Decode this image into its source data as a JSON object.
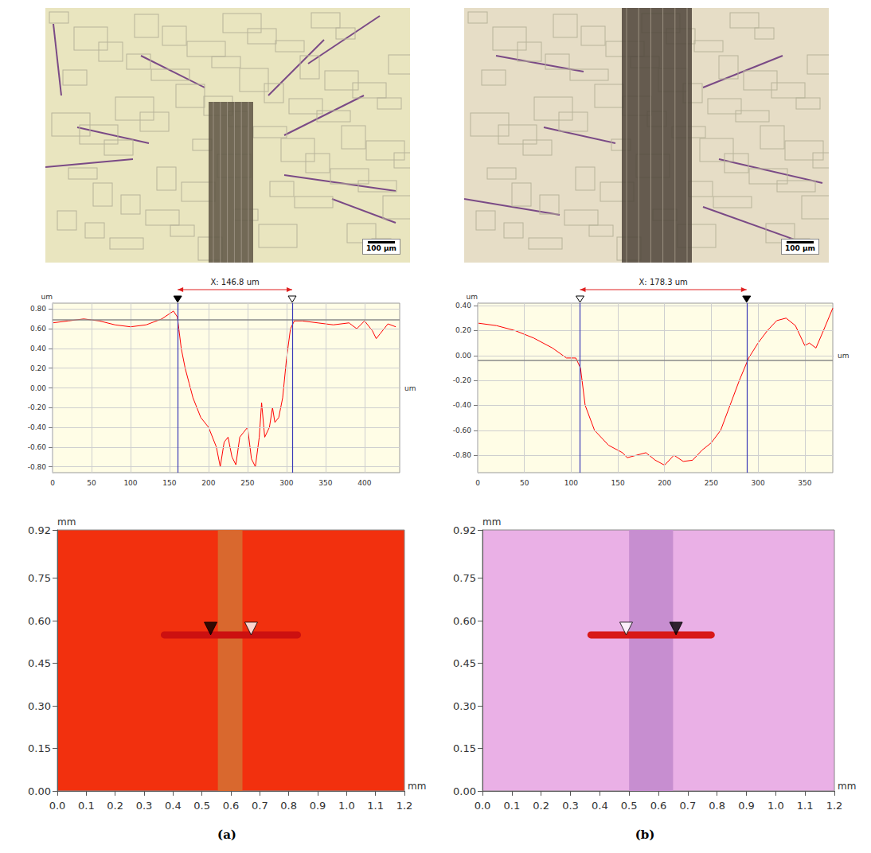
{
  "panel_labels": [
    "(a)",
    "(b)"
  ],
  "micrographs": [
    {
      "scale_bar": "100 µm"
    },
    {
      "scale_bar": "100 µm"
    }
  ],
  "chart_data": [
    {
      "type": "line",
      "annotation": "X: 146.8 um",
      "x_label": "um",
      "y_label": "um",
      "xlim": [
        0,
        445
      ],
      "xticks": [
        0,
        50,
        100,
        150,
        200,
        250,
        300,
        350,
        400
      ],
      "ylim": [
        -0.86,
        0.86
      ],
      "yticks": [
        {
          "value": -0.8,
          "label": "-0.80"
        },
        {
          "value": -0.6,
          "label": "-0.60"
        },
        {
          "value": -0.4,
          "label": "-0.40"
        },
        {
          "value": -0.2,
          "label": "-0.20"
        },
        {
          "value": 0,
          "label": "0.00"
        },
        {
          "value": 0.2,
          "label": "0.20"
        },
        {
          "value": 0.4,
          "label": "0.40"
        },
        {
          "value": 0.6,
          "label": "0.60"
        },
        {
          "value": 0.8,
          "label": "0.80"
        }
      ],
      "grid": true,
      "color": "#ff0000",
      "x": [
        0,
        20,
        40,
        60,
        80,
        100,
        120,
        140,
        155,
        160,
        165,
        170,
        175,
        180,
        190,
        200,
        210,
        215,
        220,
        225,
        230,
        235,
        240,
        245,
        250,
        255,
        260,
        265,
        268,
        272,
        278,
        282,
        285,
        290,
        295,
        300,
        305,
        310,
        320,
        340,
        360,
        380,
        390,
        400,
        410,
        415,
        420,
        430,
        440
      ],
      "values": [
        0.66,
        0.68,
        0.7,
        0.68,
        0.64,
        0.62,
        0.64,
        0.7,
        0.78,
        0.72,
        0.4,
        0.2,
        0.05,
        -0.1,
        -0.3,
        -0.4,
        -0.6,
        -0.8,
        -0.55,
        -0.5,
        -0.7,
        -0.78,
        -0.5,
        -0.45,
        -0.4,
        -0.72,
        -0.8,
        -0.5,
        -0.15,
        -0.5,
        -0.4,
        -0.2,
        -0.35,
        -0.3,
        -0.1,
        0.3,
        0.6,
        0.68,
        0.68,
        0.66,
        0.64,
        0.66,
        0.6,
        0.68,
        0.58,
        0.5,
        0.55,
        0.65,
        0.62
      ],
      "markers": [
        {
          "x": 160.4,
          "color": "#000000"
        },
        {
          "x": 307.2,
          "color": "#ffffff"
        }
      ],
      "reference_line": 0.69
    },
    {
      "type": "line",
      "annotation": "X: 178.3 um",
      "x_label": "um",
      "y_label": "um",
      "xlim": [
        0,
        380
      ],
      "xticks": [
        0,
        50,
        100,
        150,
        200,
        250,
        300,
        350
      ],
      "ylim": [
        -0.94,
        0.42
      ],
      "yticks": [
        {
          "value": -0.8,
          "label": "-0.80"
        },
        {
          "value": -0.6,
          "label": "-0.60"
        },
        {
          "value": -0.4,
          "label": "-0.40"
        },
        {
          "value": -0.2,
          "label": "-0.20"
        },
        {
          "value": 0,
          "label": "0.00"
        },
        {
          "value": 0.2,
          "label": "0.20"
        },
        {
          "value": 0.4,
          "label": "0.40"
        }
      ],
      "grid": true,
      "color": "#ff0000",
      "x": [
        0,
        20,
        40,
        60,
        80,
        95,
        105,
        110,
        115,
        125,
        140,
        155,
        160,
        170,
        180,
        190,
        200,
        210,
        220,
        230,
        240,
        250,
        260,
        270,
        280,
        290,
        300,
        310,
        320,
        330,
        340,
        350,
        355,
        362,
        370,
        380
      ],
      "values": [
        0.26,
        0.24,
        0.2,
        0.14,
        0.06,
        -0.02,
        -0.02,
        -0.1,
        -0.4,
        -0.6,
        -0.72,
        -0.78,
        -0.82,
        -0.8,
        -0.78,
        -0.84,
        -0.88,
        -0.8,
        -0.85,
        -0.84,
        -0.76,
        -0.7,
        -0.6,
        -0.4,
        -0.2,
        -0.02,
        0.1,
        0.2,
        0.28,
        0.3,
        0.24,
        0.08,
        0.1,
        0.06,
        0.2,
        0.38
      ],
      "markers": [
        {
          "x": 109.5,
          "color": "#ffffff"
        },
        {
          "x": 287.8,
          "color": "#000000"
        }
      ],
      "reference_line": -0.04
    },
    {
      "type": "topography",
      "x_label": "mm",
      "y_label": "mm",
      "xlim": [
        0,
        1.2
      ],
      "xticks": [
        {
          "value": 0,
          "label": "0.0"
        },
        0.1,
        0.2,
        0.3,
        0.4,
        0.5,
        0.6,
        0.7,
        0.8,
        0.9,
        {
          "value": 1,
          "label": "1.0"
        },
        1.1,
        1.2
      ],
      "ylim": [
        0,
        0.92
      ],
      "yticks": [
        {
          "value": 0,
          "label": "0.00"
        },
        0.15,
        {
          "value": 0.3,
          "label": "0.30"
        },
        0.45,
        {
          "value": 0.6,
          "label": "0.60"
        },
        0.75,
        0.92
      ],
      "color": "#f2300e",
      "groove": [
        0.555,
        0.64
      ],
      "groove_color": "#d9682e",
      "section": {
        "y": 0.55,
        "x": [
          0.37,
          0.83
        ],
        "color": "#cc1010"
      },
      "markers": [
        {
          "x": 0.53,
          "color": "#000000"
        },
        {
          "x": 0.67,
          "color": "#ffffff"
        }
      ]
    },
    {
      "type": "topography",
      "x_label": "mm",
      "y_label": "mm",
      "xlim": [
        0,
        1.2
      ],
      "xticks": [
        {
          "value": 0,
          "label": "0.0"
        },
        0.1,
        0.2,
        0.3,
        0.4,
        0.5,
        0.6,
        0.7,
        0.8,
        0.9,
        {
          "value": 1,
          "label": "1.0"
        },
        1.1,
        1.2
      ],
      "ylim": [
        0,
        0.92
      ],
      "yticks": [
        {
          "value": 0,
          "label": "0.00"
        },
        0.15,
        {
          "value": 0.3,
          "label": "0.30"
        },
        0.45,
        {
          "value": 0.6,
          "label": "0.60"
        },
        0.75,
        0.92
      ],
      "color": "#eab0e6",
      "groove": [
        0.5,
        0.65
      ],
      "groove_color": "#c78ed0",
      "section": {
        "y": 0.55,
        "x": [
          0.37,
          0.78
        ],
        "color": "#d81818"
      },
      "markers": [
        {
          "x": 0.49,
          "color": "#ffffff"
        },
        {
          "x": 0.66,
          "color": "#000000"
        }
      ]
    }
  ]
}
